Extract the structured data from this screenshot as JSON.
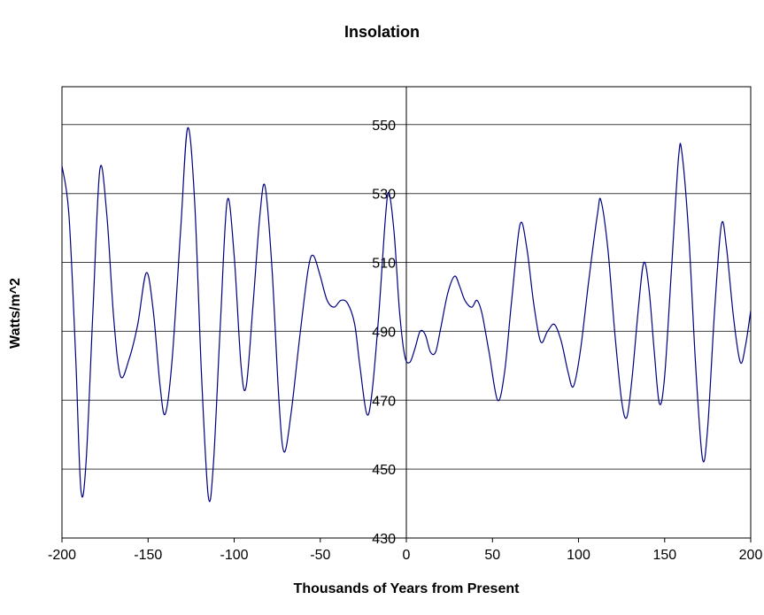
{
  "page": {
    "background": "#ffffff"
  },
  "chart_data": {
    "type": "line",
    "title": "Insolation",
    "xlabel": "Thousands of Years from Present",
    "ylabel": "Watts/m^2",
    "xlim": [
      -200,
      200
    ],
    "ylim": [
      430,
      561
    ],
    "x_ticks": [
      -200,
      -150,
      -100,
      -50,
      0,
      50,
      100,
      150,
      200
    ],
    "y_ticks": [
      430,
      450,
      470,
      490,
      510,
      530,
      550
    ],
    "grid": "horizontal",
    "legend": "none",
    "line_color": "#000080",
    "grid_color": "#404040",
    "axis_color": "#000000",
    "series": [
      {
        "name": "Insolation",
        "points": [
          [
            -200,
            538
          ],
          [
            -196,
            524
          ],
          [
            -192,
            482
          ],
          [
            -189,
            444
          ],
          [
            -186,
            452
          ],
          [
            -182,
            496
          ],
          [
            -178,
            537
          ],
          [
            -174,
            524
          ],
          [
            -170,
            494
          ],
          [
            -166,
            477
          ],
          [
            -161,
            482
          ],
          [
            -156,
            492
          ],
          [
            -151,
            507
          ],
          [
            -147,
            496
          ],
          [
            -143,
            474
          ],
          [
            -140,
            466
          ],
          [
            -136,
            482
          ],
          [
            -131,
            520
          ],
          [
            -127,
            549
          ],
          [
            -123,
            528
          ],
          [
            -119,
            478
          ],
          [
            -115,
            442
          ],
          [
            -112,
            452
          ],
          [
            -108,
            492
          ],
          [
            -104,
            528
          ],
          [
            -100,
            512
          ],
          [
            -96,
            480
          ],
          [
            -93,
            474
          ],
          [
            -89,
            498
          ],
          [
            -85,
            524
          ],
          [
            -82,
            532
          ],
          [
            -78,
            508
          ],
          [
            -74,
            470
          ],
          [
            -71,
            455
          ],
          [
            -67,
            466
          ],
          [
            -62,
            488
          ],
          [
            -57,
            508
          ],
          [
            -54,
            512
          ],
          [
            -50,
            506
          ],
          [
            -46,
            499
          ],
          [
            -42,
            497
          ],
          [
            -38,
            499
          ],
          [
            -34,
            498
          ],
          [
            -30,
            492
          ],
          [
            -27,
            480
          ],
          [
            -23,
            466
          ],
          [
            -20,
            472
          ],
          [
            -16,
            495
          ],
          [
            -12,
            524
          ],
          [
            -10,
            530
          ],
          [
            -7,
            518
          ],
          [
            -4,
            496
          ],
          [
            -1,
            483
          ],
          [
            2,
            481
          ],
          [
            5,
            485
          ],
          [
            8,
            490
          ],
          [
            11,
            489
          ],
          [
            14,
            484
          ],
          [
            17,
            484
          ],
          [
            20,
            491
          ],
          [
            24,
            501
          ],
          [
            28,
            506
          ],
          [
            31,
            503
          ],
          [
            34,
            499
          ],
          [
            38,
            497
          ],
          [
            41,
            499
          ],
          [
            44,
            495
          ],
          [
            48,
            484
          ],
          [
            53,
            470
          ],
          [
            57,
            478
          ],
          [
            61,
            498
          ],
          [
            66,
            521
          ],
          [
            70,
            514
          ],
          [
            74,
            498
          ],
          [
            78,
            487
          ],
          [
            82,
            490
          ],
          [
            86,
            492
          ],
          [
            90,
            487
          ],
          [
            94,
            478
          ],
          [
            97,
            474
          ],
          [
            101,
            484
          ],
          [
            106,
            505
          ],
          [
            111,
            524
          ],
          [
            113,
            528
          ],
          [
            117,
            514
          ],
          [
            121,
            490
          ],
          [
            125,
            470
          ],
          [
            128,
            465
          ],
          [
            131,
            476
          ],
          [
            135,
            498
          ],
          [
            138,
            510
          ],
          [
            141,
            502
          ],
          [
            144,
            484
          ],
          [
            147,
            469
          ],
          [
            150,
            477
          ],
          [
            154,
            508
          ],
          [
            158,
            540
          ],
          [
            160,
            542
          ],
          [
            164,
            518
          ],
          [
            168,
            480
          ],
          [
            172,
            453
          ],
          [
            175,
            462
          ],
          [
            179,
            496
          ],
          [
            183,
            521
          ],
          [
            186,
            514
          ],
          [
            190,
            494
          ],
          [
            194,
            481
          ],
          [
            197,
            486
          ],
          [
            200,
            496
          ]
        ]
      }
    ]
  }
}
